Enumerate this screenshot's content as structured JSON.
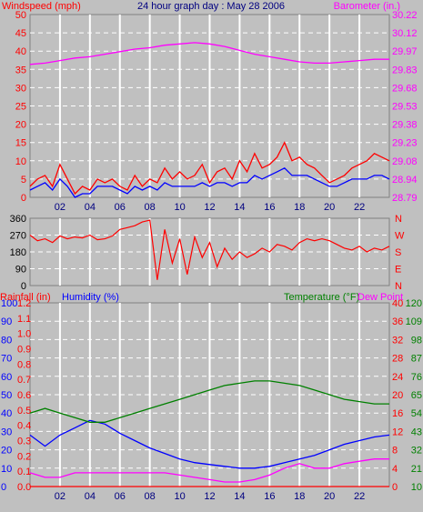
{
  "header": {
    "left_label": "Windspeed (mph)",
    "center_title": "24 hour graph day : May 28 2006",
    "right_label": "Barometer (in.)"
  },
  "colors": {
    "background": "#c0c0c0",
    "grid": "#ffffff",
    "windspeed": "#ff0000",
    "wind_avg": "#0000ff",
    "barometer": "#ff00ff",
    "direction": "#ff0000",
    "rainfall": "#ff0000",
    "humidity": "#0000ff",
    "temperature": "#008000",
    "dewpoint": "#ff00ff",
    "title": "#000080"
  },
  "chart_data": [
    {
      "type": "line",
      "name": "wind-barometer",
      "x_ticks": [
        "02",
        "04",
        "06",
        "08",
        "10",
        "12",
        "14",
        "16",
        "18",
        "20",
        "22"
      ],
      "xlim": [
        0,
        24
      ],
      "y_left": {
        "label": "Windspeed (mph)",
        "lim": [
          0,
          50
        ],
        "ticks": [
          "0",
          "5",
          "10",
          "15",
          "20",
          "25",
          "30",
          "35",
          "40",
          "45",
          "50"
        ]
      },
      "y_right": {
        "label": "Barometer (in.)",
        "lim": [
          28.79,
          30.22
        ],
        "ticks": [
          "28.79",
          "28.94",
          "29.08",
          "29.23",
          "29.38",
          "29.53",
          "29.68",
          "29.83",
          "29.97",
          "30.12",
          "30.22"
        ]
      },
      "series": [
        {
          "axis": "left",
          "color": "#ff0000",
          "x": [
            0,
            0.5,
            1,
            1.5,
            2,
            2.5,
            3,
            3.5,
            4,
            4.5,
            5,
            5.5,
            6,
            6.5,
            7,
            7.5,
            8,
            8.5,
            9,
            9.5,
            10,
            10.5,
            11,
            11.5,
            12,
            12.5,
            13,
            13.5,
            14,
            14.5,
            15,
            15.5,
            16,
            16.5,
            17,
            17.5,
            18,
            18.5,
            19,
            19.5,
            20,
            20.5,
            21,
            21.5,
            22,
            22.5,
            23,
            23.5,
            24
          ],
          "values": [
            3,
            5,
            6,
            3,
            9,
            5,
            1,
            3,
            2,
            5,
            4,
            5,
            3,
            2,
            6,
            3,
            5,
            4,
            8,
            5,
            7,
            5,
            6,
            9,
            4,
            7,
            8,
            5,
            10,
            7,
            12,
            8,
            9,
            11,
            15,
            10,
            11,
            9,
            8,
            6,
            4,
            5,
            6,
            8,
            9,
            10,
            12,
            11,
            10
          ]
        },
        {
          "axis": "left",
          "color": "#0000ff",
          "x": [
            0,
            0.5,
            1,
            1.5,
            2,
            2.5,
            3,
            3.5,
            4,
            4.5,
            5,
            5.5,
            6,
            6.5,
            7,
            7.5,
            8,
            8.5,
            9,
            9.5,
            10,
            10.5,
            11,
            11.5,
            12,
            12.5,
            13,
            13.5,
            14,
            14.5,
            15,
            15.5,
            16,
            16.5,
            17,
            17.5,
            18,
            18.5,
            19,
            19.5,
            20,
            20.5,
            21,
            21.5,
            22,
            22.5,
            23,
            23.5,
            24
          ],
          "values": [
            2,
            3,
            4,
            2,
            5,
            3,
            0,
            1,
            1,
            3,
            3,
            3,
            2,
            1,
            3,
            2,
            3,
            2,
            4,
            3,
            3,
            3,
            3,
            4,
            3,
            4,
            4,
            3,
            4,
            4,
            6,
            5,
            6,
            7,
            8,
            6,
            6,
            6,
            5,
            4,
            3,
            3,
            4,
            5,
            5,
            5,
            6,
            6,
            5
          ]
        },
        {
          "axis": "right",
          "color": "#ff00ff",
          "x": [
            0,
            1,
            2,
            3,
            4,
            5,
            6,
            7,
            8,
            9,
            10,
            11,
            12,
            13,
            14,
            15,
            16,
            17,
            18,
            19,
            20,
            21,
            22,
            23,
            24
          ],
          "values": [
            29.83,
            29.84,
            29.86,
            29.88,
            29.89,
            29.91,
            29.93,
            29.95,
            29.96,
            29.98,
            29.99,
            30.0,
            29.99,
            29.97,
            29.94,
            29.91,
            29.89,
            29.87,
            29.85,
            29.84,
            29.84,
            29.85,
            29.86,
            29.87,
            29.87
          ]
        }
      ]
    },
    {
      "type": "line",
      "name": "wind-direction",
      "x_ticks": [],
      "xlim": [
        0,
        24
      ],
      "y_left": {
        "lim": [
          0,
          360
        ],
        "ticks": [
          "0",
          "90",
          "180",
          "270",
          "360"
        ]
      },
      "y_right_labels": [
        "N",
        "W",
        "S",
        "E",
        "N"
      ],
      "series": [
        {
          "color": "#ff0000",
          "x": [
            0,
            0.5,
            1,
            1.5,
            2,
            2.5,
            3,
            3.5,
            4,
            4.5,
            5,
            5.5,
            6,
            6.5,
            7,
            7.5,
            8,
            8.5,
            9,
            9.5,
            10,
            10.5,
            11,
            11.5,
            12,
            12.5,
            13,
            13.5,
            14,
            14.5,
            15,
            15.5,
            16,
            16.5,
            17,
            17.5,
            18,
            18.5,
            19,
            19.5,
            20,
            20.5,
            21,
            21.5,
            22,
            22.5,
            23,
            23.5,
            24
          ],
          "values": [
            270,
            240,
            250,
            230,
            265,
            250,
            260,
            255,
            270,
            245,
            250,
            265,
            300,
            310,
            320,
            340,
            350,
            30,
            300,
            120,
            250,
            60,
            260,
            150,
            230,
            100,
            200,
            140,
            180,
            150,
            170,
            200,
            180,
            220,
            210,
            190,
            230,
            250,
            240,
            250,
            240,
            220,
            200,
            190,
            210,
            180,
            200,
            190,
            210
          ]
        }
      ]
    },
    {
      "type": "line",
      "name": "rain-humidity-temperature",
      "x_ticks": [
        "02",
        "04",
        "06",
        "08",
        "10",
        "12",
        "14",
        "16",
        "18",
        "20",
        "22"
      ],
      "xlim": [
        0,
        24
      ],
      "y_left_rain": {
        "label": "Rainfall (in)",
        "lim": [
          0,
          1.2
        ],
        "ticks": [
          "0.0",
          "0.1",
          "0.2",
          "0.3",
          "0.4",
          "0.5",
          "0.6",
          "0.7",
          "0.8",
          "0.9",
          "1.0",
          "1.1",
          "1.2"
        ]
      },
      "y_left_humidity": {
        "label": "Humidity (%)",
        "lim": [
          0,
          100
        ],
        "ticks": [
          "0",
          "10",
          "20",
          "30",
          "40",
          "50",
          "60",
          "70",
          "80",
          "90",
          "100"
        ]
      },
      "y_right_temp_c": {
        "label": "Temperature (°F)",
        "lim": [
          0,
          40
        ],
        "ticks": [
          "0",
          "4",
          "8",
          "12",
          "16",
          "20",
          "24",
          "28",
          "32",
          "36",
          "40"
        ]
      },
      "y_right_temp_f": {
        "label": "Dew Point",
        "ticks": [
          "10",
          "21",
          "32",
          "43",
          "54",
          "65",
          "76",
          "87",
          "98",
          "109",
          "120"
        ]
      },
      "series": [
        {
          "name": "Humidity (%)",
          "color": "#0000ff",
          "axis": "humidity",
          "x": [
            0,
            1,
            2,
            3,
            4,
            5,
            6,
            7,
            8,
            9,
            10,
            11,
            12,
            13,
            14,
            15,
            16,
            17,
            18,
            19,
            20,
            21,
            22,
            23,
            24
          ],
          "values": [
            28,
            22,
            28,
            32,
            36,
            34,
            29,
            25,
            21,
            18,
            15,
            13,
            12,
            11,
            10,
            10,
            11,
            13,
            15,
            17,
            20,
            23,
            25,
            27,
            28
          ]
        },
        {
          "name": "Temperature (°F)",
          "color": "#008000",
          "axis": "temp_c",
          "x": [
            0,
            1,
            2,
            3,
            4,
            5,
            6,
            7,
            8,
            9,
            10,
            11,
            12,
            13,
            14,
            15,
            16,
            17,
            18,
            19,
            20,
            21,
            22,
            23,
            24
          ],
          "values": [
            16,
            17,
            16,
            15,
            14,
            14,
            15,
            16,
            17,
            18,
            19,
            20,
            21,
            22,
            22.5,
            23,
            23,
            22.5,
            22,
            21,
            20,
            19,
            18.5,
            18,
            18
          ]
        },
        {
          "name": "Dew Point",
          "color": "#ff00ff",
          "axis": "temp_c",
          "x": [
            0,
            1,
            2,
            3,
            4,
            5,
            6,
            7,
            8,
            9,
            10,
            11,
            12,
            13,
            14,
            15,
            16,
            17,
            18,
            19,
            20,
            21,
            22,
            23,
            24
          ],
          "values": [
            3,
            2,
            2,
            3,
            3,
            3,
            3,
            3,
            3,
            3,
            2.5,
            2,
            1.5,
            1,
            1,
            1.5,
            2.5,
            4,
            5,
            4,
            4,
            5,
            5.5,
            6,
            6
          ]
        },
        {
          "name": "Rainfall (in)",
          "color": "#ff0000",
          "axis": "rain",
          "x": [
            0,
            24
          ],
          "values": [
            0,
            0
          ]
        }
      ]
    }
  ]
}
